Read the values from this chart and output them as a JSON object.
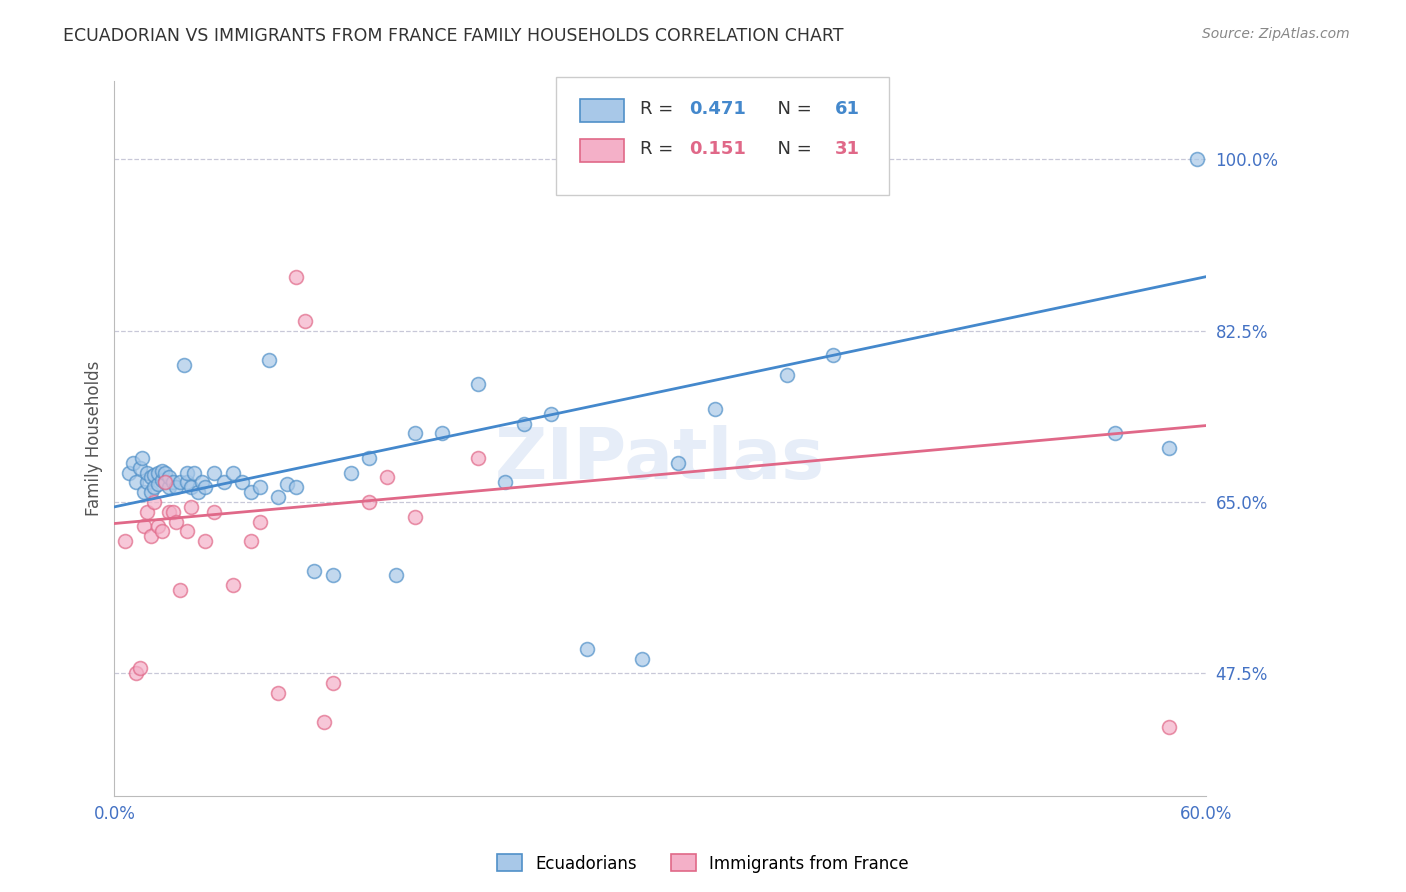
{
  "title": "ECUADORIAN VS IMMIGRANTS FROM FRANCE FAMILY HOUSEHOLDS CORRELATION CHART",
  "source": "Source: ZipAtlas.com",
  "ylabel": "Family Households",
  "xlim": [
    0.0,
    0.6
  ],
  "ylim": [
    0.35,
    1.08
  ],
  "yticks": [
    0.475,
    0.65,
    0.825,
    1.0
  ],
  "ytick_labels": [
    "47.5%",
    "65.0%",
    "82.5%",
    "100.0%"
  ],
  "xticks": [
    0.0,
    0.1,
    0.2,
    0.3,
    0.4,
    0.5,
    0.6
  ],
  "xtick_labels": [
    "0.0%",
    "",
    "",
    "",
    "",
    "",
    "60.0%"
  ],
  "blue_color": "#a8c8e8",
  "pink_color": "#f4b0c8",
  "blue_edge_color": "#5090c8",
  "pink_edge_color": "#e06888",
  "blue_line_color": "#4488cc",
  "pink_line_color": "#e06888",
  "legend_blue_text": "R = 0.471   N = 61",
  "legend_pink_text": "R = 0.151   N = 31",
  "legend_r_color": "#4488cc",
  "legend_n_color": "#e06888",
  "watermark": "ZIPatlas",
  "background_color": "#ffffff",
  "grid_color": "#c8c8d8",
  "tick_color": "#4472c4",
  "title_color": "#333333",
  "source_color": "#888888",
  "marker_size": 100,
  "blue_scatter_x": [
    0.008,
    0.01,
    0.012,
    0.014,
    0.015,
    0.016,
    0.018,
    0.018,
    0.02,
    0.02,
    0.022,
    0.022,
    0.024,
    0.024,
    0.026,
    0.026,
    0.028,
    0.028,
    0.03,
    0.03,
    0.032,
    0.034,
    0.036,
    0.038,
    0.04,
    0.04,
    0.042,
    0.044,
    0.046,
    0.048,
    0.05,
    0.055,
    0.06,
    0.065,
    0.07,
    0.075,
    0.08,
    0.085,
    0.09,
    0.095,
    0.1,
    0.11,
    0.12,
    0.13,
    0.14,
    0.155,
    0.165,
    0.18,
    0.2,
    0.215,
    0.225,
    0.24,
    0.26,
    0.29,
    0.31,
    0.33,
    0.37,
    0.395,
    0.55,
    0.58,
    0.595
  ],
  "blue_scatter_y": [
    0.68,
    0.69,
    0.67,
    0.685,
    0.695,
    0.66,
    0.67,
    0.68,
    0.66,
    0.675,
    0.665,
    0.678,
    0.668,
    0.68,
    0.672,
    0.682,
    0.67,
    0.68,
    0.665,
    0.675,
    0.67,
    0.665,
    0.67,
    0.79,
    0.67,
    0.68,
    0.665,
    0.68,
    0.66,
    0.67,
    0.665,
    0.68,
    0.67,
    0.68,
    0.67,
    0.66,
    0.665,
    0.795,
    0.655,
    0.668,
    0.665,
    0.58,
    0.575,
    0.68,
    0.695,
    0.575,
    0.72,
    0.72,
    0.77,
    0.67,
    0.73,
    0.74,
    0.5,
    0.49,
    0.69,
    0.745,
    0.78,
    0.8,
    0.72,
    0.705,
    1.0
  ],
  "pink_scatter_x": [
    0.006,
    0.012,
    0.014,
    0.016,
    0.018,
    0.02,
    0.022,
    0.024,
    0.026,
    0.028,
    0.03,
    0.032,
    0.034,
    0.036,
    0.04,
    0.042,
    0.05,
    0.055,
    0.065,
    0.075,
    0.08,
    0.09,
    0.1,
    0.105,
    0.115,
    0.12,
    0.14,
    0.15,
    0.165,
    0.2,
    0.58
  ],
  "pink_scatter_y": [
    0.61,
    0.475,
    0.48,
    0.625,
    0.64,
    0.615,
    0.65,
    0.625,
    0.62,
    0.67,
    0.64,
    0.64,
    0.63,
    0.56,
    0.62,
    0.645,
    0.61,
    0.64,
    0.565,
    0.61,
    0.63,
    0.455,
    0.88,
    0.835,
    0.425,
    0.465,
    0.65,
    0.675,
    0.635,
    0.695,
    0.42
  ],
  "blue_trendline_x0": 0.0,
  "blue_trendline_y0": 0.645,
  "blue_trendline_x1": 0.6,
  "blue_trendline_y1": 0.88,
  "pink_trendline_x0": 0.0,
  "pink_trendline_y0": 0.628,
  "pink_trendline_x1": 0.6,
  "pink_trendline_y1": 0.728
}
